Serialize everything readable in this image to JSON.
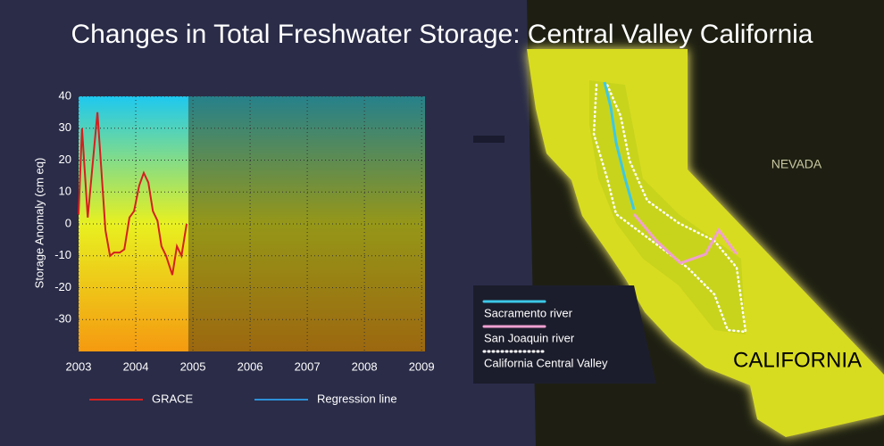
{
  "chart_data": {
    "type": "line",
    "title": "Changes in Total Freshwater Storage: Central Valley California",
    "ylabel": "Storage Anomaly (cm eq)",
    "xlim": [
      2003,
      2009.06
    ],
    "xticks": [
      2003,
      2004,
      2005,
      2006,
      2007,
      2008,
      2009
    ],
    "ylim": [
      -40,
      40
    ],
    "yticks": [
      40,
      30,
      20,
      10,
      0,
      -10,
      -20,
      -30
    ],
    "grid": true,
    "shaded_until": 2004.92,
    "x": [
      2003.0,
      2003.06,
      2003.16,
      2003.33,
      2003.47,
      2003.55,
      2003.62,
      2003.72,
      2003.8,
      2003.89,
      2003.97,
      2004.06,
      2004.14,
      2004.22,
      2004.3,
      2004.38,
      2004.45,
      2004.53,
      2004.64,
      2004.72,
      2004.8,
      2004.89
    ],
    "series": [
      {
        "name": "GRACE",
        "color": "#d42020",
        "values": [
          3,
          30,
          2,
          35,
          -2,
          -10,
          -9,
          -9,
          -8,
          2,
          4,
          12,
          16,
          13,
          4,
          1,
          -7,
          -10,
          -16,
          -7,
          -10,
          0
        ]
      },
      {
        "name": "Regression line",
        "color": "#2e90d8",
        "values": [
          null,
          null,
          null,
          null,
          null,
          null,
          null,
          null,
          null,
          null,
          null,
          null,
          null,
          null,
          null,
          null,
          null,
          null,
          null,
          null,
          null,
          null
        ]
      }
    ]
  },
  "map": {
    "region_labels": [
      "NEVADA",
      "CALIFORNIA"
    ],
    "legend": [
      {
        "label": "Sacramento river",
        "color": "#3cc8e8"
      },
      {
        "label": "San Joaquin river",
        "color": "#f0a0d0"
      },
      {
        "label": "California Central Valley",
        "color": "#ffffff"
      }
    ]
  }
}
